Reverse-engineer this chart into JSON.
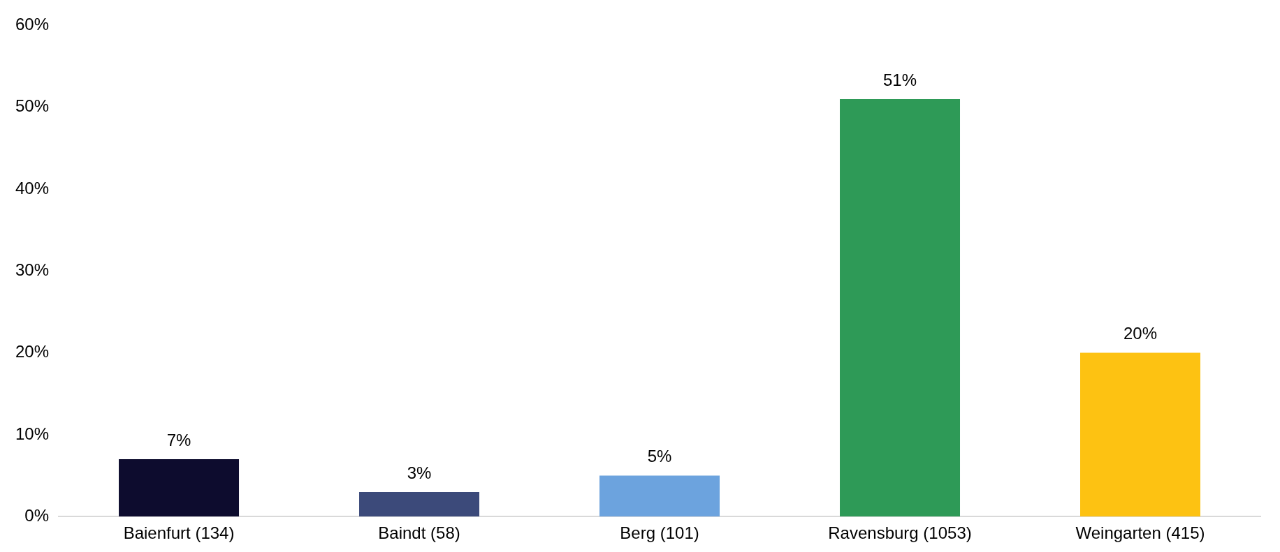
{
  "chart_data": {
    "type": "bar",
    "categories": [
      "Baienfurt (134)",
      "Baindt (58)",
      "Berg (101)",
      "Ravensburg (1053)",
      "Weingarten (415)"
    ],
    "values": [
      7,
      3,
      5,
      51,
      20
    ],
    "colors": [
      "#0d0c2e",
      "#3c4a7a",
      "#6ca3de",
      "#2e9a57",
      "#fdc212"
    ],
    "value_labels": [
      "7%",
      "3%",
      "5%",
      "51%",
      "20%"
    ],
    "data_labels": false,
    "ylim": [
      0,
      60
    ],
    "yticks": [
      {
        "value": 0,
        "label": "0%"
      },
      {
        "value": 10,
        "label": "10%"
      },
      {
        "value": 20,
        "label": "20%"
      },
      {
        "value": 30,
        "label": "30%"
      },
      {
        "value": 40,
        "label": "40%"
      },
      {
        "value": 50,
        "label": "50%"
      },
      {
        "value": 60,
        "label": "60%"
      }
    ],
    "grid": false,
    "legend": false
  }
}
